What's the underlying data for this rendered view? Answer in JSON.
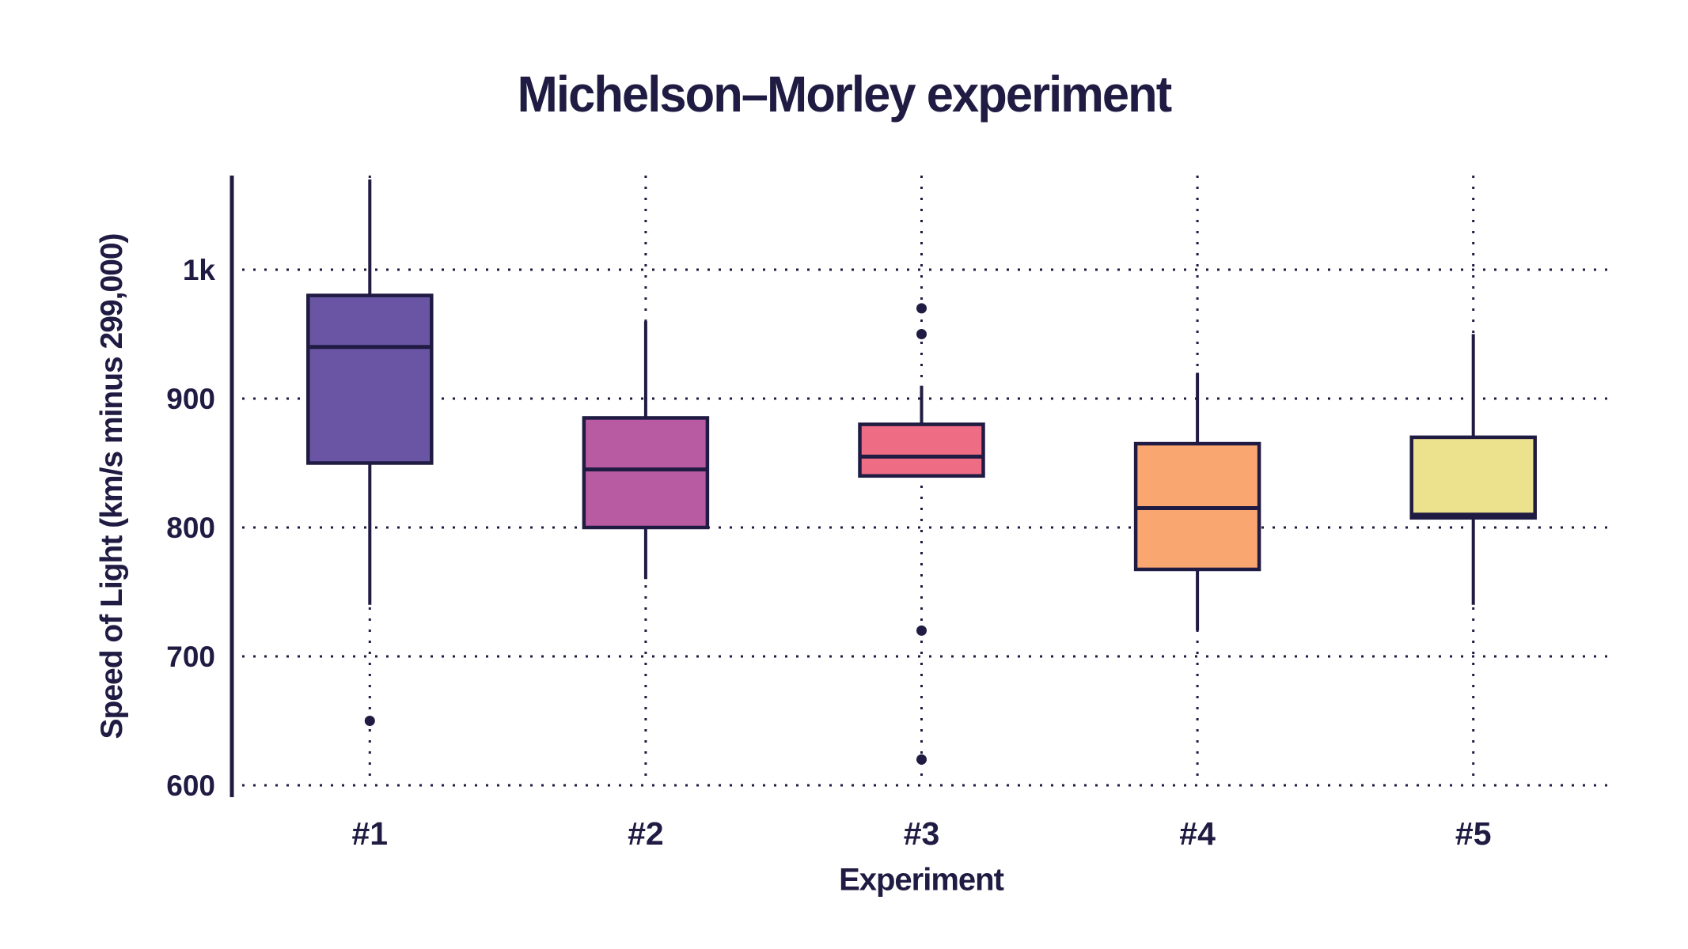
{
  "colors": {
    "ink": "#1f1b42",
    "background": "#ffffff"
  },
  "chart_data": {
    "type": "box",
    "title": "Michelson–Morley experiment",
    "xlabel": "Experiment",
    "ylabel": "Speed of Light (km/s minus 299,000)",
    "categories": [
      "#1",
      "#2",
      "#3",
      "#4",
      "#5"
    ],
    "y_ticks": [
      {
        "value": 1000,
        "label": "1k"
      },
      {
        "value": 900,
        "label": "900"
      },
      {
        "value": 800,
        "label": "800"
      },
      {
        "value": 700,
        "label": "700"
      },
      {
        "value": 600,
        "label": "600"
      }
    ],
    "ylim": [
      590.8,
      1073.0
    ],
    "grid": {
      "horizontal": "dotted",
      "vertical": "dotted",
      "legend": "none"
    },
    "series": [
      {
        "name": "#1",
        "color": "#6a55a4",
        "lower_whisker": 740,
        "q1": 850,
        "median": 940,
        "q3": 980,
        "upper_whisker": 1070,
        "outliers": [
          650
        ]
      },
      {
        "name": "#2",
        "color": "#b95ba3",
        "lower_whisker": 760,
        "q1": 800,
        "median": 845,
        "q3": 885,
        "upper_whisker": 960,
        "outliers": []
      },
      {
        "name": "#3",
        "color": "#ee6d85",
        "lower_whisker": 840,
        "q1": 840,
        "median": 855,
        "q3": 880,
        "upper_whisker": 910,
        "outliers": [
          620,
          720,
          950,
          970
        ]
      },
      {
        "name": "#4",
        "color": "#f9a671",
        "lower_whisker": 720,
        "q1": 767.5,
        "median": 815,
        "q3": 865,
        "upper_whisker": 920,
        "outliers": []
      },
      {
        "name": "#5",
        "color": "#ece18d",
        "lower_whisker": 740,
        "q1": 807.5,
        "median": 810,
        "q3": 870,
        "upper_whisker": 950,
        "outliers": []
      }
    ]
  }
}
